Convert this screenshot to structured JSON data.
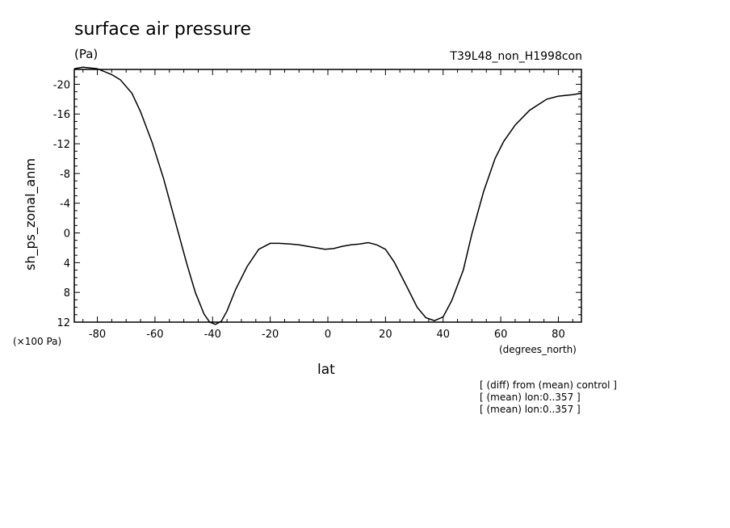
{
  "chart_data": {
    "type": "line",
    "title": "surface air pressure",
    "units": "(Pa)",
    "run_label": "T39L48_non_H1998con",
    "xlabel": "lat",
    "x_units": "(degrees_north)",
    "ylabel": "sh_ps_zonal_anm",
    "y_scale_label": "(×100 Pa)",
    "xlim": [
      -88,
      88
    ],
    "ylim": [
      12,
      -22
    ],
    "y_inverted": true,
    "x_ticks": [
      -80,
      -60,
      -40,
      -20,
      0,
      20,
      40,
      60,
      80
    ],
    "y_ticks": [
      -20,
      -16,
      -12,
      -8,
      -4,
      0,
      4,
      8,
      12
    ],
    "x_tick_labels": [
      "-80",
      "-60",
      "-40",
      "-20",
      "0",
      "20",
      "40",
      "60",
      "80"
    ],
    "y_tick_labels": [
      "-20",
      "-16",
      "-12",
      "-8",
      "-4",
      "0",
      "4",
      "8",
      "12"
    ],
    "notes": [
      "[ (diff) from (mean) control ]",
      "[ (mean) lon:0..357 ]",
      "[ (mean) lon:0..357 ]"
    ],
    "grid": false,
    "series": [
      {
        "x": [
          -88,
          -85,
          -80,
          -75,
          -72,
          -68,
          -65,
          -61,
          -57,
          -53,
          -49,
          -46,
          -43,
          -41,
          -39,
          -37,
          -35,
          -32,
          -28,
          -24,
          -20,
          -17,
          -13,
          -10,
          -7,
          -4,
          -1,
          2,
          5,
          8,
          11,
          14,
          17,
          20,
          23,
          27,
          31,
          34,
          37,
          40,
          43,
          47,
          50,
          54,
          58,
          61,
          65,
          70,
          76,
          80,
          85,
          88
        ],
        "y": [
          -22.1,
          -22.3,
          -22.1,
          -21.3,
          -20.6,
          -18.8,
          -16.3,
          -12.2,
          -7.3,
          -1.6,
          4.1,
          8.0,
          10.9,
          12.0,
          12.3,
          11.9,
          10.5,
          7.6,
          4.5,
          2.2,
          1.4,
          1.4,
          1.5,
          1.6,
          1.8,
          2.0,
          2.2,
          2.1,
          1.8,
          1.6,
          1.5,
          1.3,
          1.6,
          2.2,
          3.9,
          6.9,
          10.0,
          11.4,
          11.8,
          11.3,
          9.1,
          5.0,
          0.1,
          -5.5,
          -10.0,
          -12.3,
          -14.5,
          -16.5,
          -18.0,
          -18.4,
          -18.6,
          -18.8
        ]
      }
    ]
  }
}
